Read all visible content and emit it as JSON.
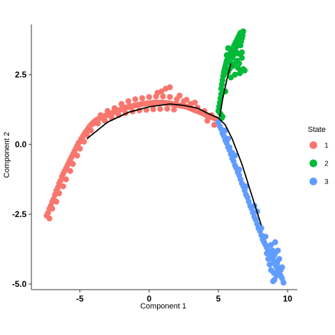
{
  "chart_data": {
    "type": "scatter",
    "title": "",
    "xlabel": "Component 1",
    "ylabel": "Component 2",
    "xlim": [
      -8.5,
      10.7
    ],
    "ylim": [
      -5.2,
      4.3
    ],
    "x_ticks": [
      -5,
      0,
      5,
      10
    ],
    "x_tick_labels": [
      "-5",
      "0",
      "5",
      "10"
    ],
    "y_ticks": [
      -5.0,
      -2.5,
      0.0,
      2.5
    ],
    "y_tick_labels": [
      "-5.0",
      "-2.5",
      "0.0",
      "2.5"
    ],
    "grid": false,
    "legend": {
      "title": "State",
      "position": "right",
      "entries": [
        {
          "label": "1",
          "color": "#F8766D"
        },
        {
          "label": "2",
          "color": "#00BA38"
        },
        {
          "label": "3",
          "color": "#619CFF"
        }
      ]
    },
    "trajectory": {
      "color": "#000000",
      "x": [
        -4.5,
        -3.0,
        -1.5,
        0.0,
        1.5,
        2.5,
        3.5,
        4.3,
        5.0,
        5.5,
        6.0,
        6.7,
        7.4,
        8.1
      ],
      "y": [
        0.2,
        0.8,
        1.15,
        1.35,
        1.45,
        1.4,
        1.3,
        1.1,
        0.95,
        0.7,
        0.2,
        -0.7,
        -1.8,
        -2.9
      ]
    },
    "branch": {
      "color": "#000000",
      "x": [
        5.1,
        5.3,
        5.6,
        5.9
      ],
      "y": [
        1.0,
        1.6,
        2.3,
        2.9
      ]
    },
    "series": [
      {
        "name": "1",
        "color": "#F8766D",
        "x": [
          -7.4,
          -7.3,
          -7.2,
          -7.1,
          -7.0,
          -6.9,
          -6.8,
          -6.7,
          -6.6,
          -6.5,
          -6.4,
          -6.3,
          -6.2,
          -6.1,
          -6.0,
          -5.9,
          -5.8,
          -5.7,
          -5.6,
          -5.5,
          -5.4,
          -5.3,
          -5.2,
          -5.1,
          -5.0,
          -4.9,
          -4.8,
          -4.7,
          -4.6,
          -4.5,
          -4.4,
          -4.3,
          -4.2,
          -4.1,
          -4.0,
          -3.9,
          -3.8,
          -3.7,
          -3.6,
          -3.5,
          -3.4,
          -3.3,
          -3.2,
          -3.1,
          -3.0,
          -2.9,
          -2.8,
          -2.7,
          -2.6,
          -2.5,
          -2.4,
          -2.3,
          -2.2,
          -2.1,
          -2.0,
          -1.9,
          -1.8,
          -1.7,
          -1.6,
          -1.5,
          -1.4,
          -1.3,
          -1.2,
          -1.1,
          -1.0,
          -0.9,
          -0.8,
          -0.7,
          -0.6,
          -0.5,
          -0.4,
          -0.3,
          -0.2,
          -0.1,
          0.0,
          0.1,
          0.2,
          0.3,
          0.4,
          0.5,
          0.6,
          0.7,
          0.8,
          0.9,
          1.0,
          1.1,
          1.2,
          1.3,
          1.4,
          1.5,
          1.6,
          1.7,
          1.8,
          1.9,
          2.0,
          2.1,
          2.2,
          2.3,
          2.4,
          2.5,
          2.6,
          2.7,
          2.8,
          2.9,
          3.0,
          3.1,
          3.2,
          3.3,
          3.4,
          3.5,
          3.6,
          3.7,
          3.8,
          3.9,
          4.0,
          4.1,
          4.2,
          4.3,
          4.4,
          4.5,
          4.6,
          4.7,
          4.8,
          4.9,
          5.0,
          -7.0,
          -6.5,
          -6.0,
          -5.5,
          -5.0,
          -4.5,
          -4.0,
          -3.5,
          -3.0,
          -2.5,
          -2.0,
          -1.5,
          -1.0,
          -0.5,
          0.0,
          0.5,
          1.0,
          1.5,
          2.0,
          2.5,
          3.0,
          3.5,
          4.0,
          4.5,
          -7.2,
          -6.7,
          -6.2,
          -5.7,
          -5.2,
          -4.7,
          -4.2,
          -3.7,
          -3.2,
          -2.7,
          -2.2,
          -1.7,
          -1.2,
          -0.7,
          -0.2,
          0.3,
          0.8,
          1.3,
          1.8,
          1.2,
          1.5,
          0.6,
          0.9,
          2.2,
          2.7,
          3.3,
          4.7,
          4.2
        ],
        "y": [
          -2.55,
          -2.45,
          -2.3,
          -2.2,
          -2.05,
          -1.95,
          -1.8,
          -1.65,
          -1.55,
          -1.4,
          -1.3,
          -1.15,
          -1.05,
          -0.95,
          -0.85,
          -0.75,
          -0.65,
          -0.55,
          -0.45,
          -0.35,
          -0.25,
          -0.15,
          -0.05,
          0.05,
          0.1,
          0.2,
          0.28,
          0.36,
          0.44,
          0.5,
          0.58,
          0.64,
          0.7,
          0.75,
          0.8,
          0.84,
          0.88,
          0.9,
          0.93,
          0.95,
          0.98,
          1.0,
          1.02,
          1.04,
          1.06,
          1.08,
          1.1,
          1.12,
          1.14,
          1.16,
          1.18,
          1.2,
          1.22,
          1.24,
          1.26,
          1.28,
          1.3,
          1.32,
          1.33,
          1.34,
          1.36,
          1.37,
          1.38,
          1.39,
          1.4,
          1.41,
          1.42,
          1.43,
          1.44,
          1.45,
          1.46,
          1.46,
          1.47,
          1.47,
          1.48,
          1.48,
          1.49,
          1.49,
          1.5,
          1.5,
          1.5,
          1.5,
          1.5,
          1.5,
          1.5,
          1.49,
          1.49,
          1.48,
          1.48,
          1.47,
          1.46,
          1.45,
          1.44,
          1.43,
          1.42,
          1.41,
          1.4,
          1.39,
          1.38,
          1.37,
          1.36,
          1.35,
          1.33,
          1.31,
          1.29,
          1.27,
          1.25,
          1.23,
          1.21,
          1.19,
          1.17,
          1.15,
          1.13,
          1.11,
          1.09,
          1.06,
          1.04,
          1.02,
          1.0,
          0.98,
          0.96,
          0.94,
          0.92,
          0.9,
          0.88,
          -2.3,
          -1.75,
          -1.25,
          -0.7,
          -0.15,
          0.35,
          0.75,
          1.05,
          1.2,
          1.3,
          1.45,
          1.55,
          1.62,
          1.66,
          1.7,
          1.72,
          1.72,
          1.7,
          1.62,
          1.55,
          1.45,
          1.32,
          1.2,
          1.05,
          -2.65,
          -2.05,
          -1.5,
          -0.95,
          -0.4,
          0.1,
          0.5,
          0.75,
          0.85,
          0.95,
          1.05,
          1.12,
          1.18,
          1.22,
          1.24,
          1.26,
          1.27,
          1.28,
          1.25,
          2.0,
          2.05,
          1.85,
          1.9,
          1.75,
          1.6,
          1.5,
          0.7,
          0.85
        ]
      },
      {
        "name": "2",
        "color": "#00BA38",
        "x": [
          5.0,
          5.05,
          5.1,
          5.15,
          5.2,
          5.2,
          5.25,
          5.3,
          5.35,
          5.4,
          5.45,
          5.5,
          5.55,
          5.6,
          5.65,
          5.7,
          5.75,
          5.8,
          5.85,
          5.9,
          5.95,
          6.0,
          6.05,
          6.1,
          6.15,
          6.2,
          6.25,
          6.3,
          6.35,
          6.4,
          6.45,
          6.5,
          6.55,
          6.6,
          6.65,
          6.7,
          6.75,
          6.8,
          5.3,
          5.5,
          5.7,
          5.9,
          6.1,
          6.3,
          6.5,
          6.7,
          5.8,
          6.0,
          6.2,
          6.4,
          6.6,
          6.8,
          6.9,
          5.6,
          5.4,
          6.0,
          6.3,
          6.5,
          6.2,
          5.9,
          5.7,
          6.55,
          6.7,
          6.45,
          6.35,
          6.6,
          5.25,
          5.15
        ],
        "y": [
          1.2,
          1.35,
          1.5,
          1.65,
          1.8,
          2.0,
          2.15,
          2.3,
          2.45,
          2.6,
          2.7,
          2.8,
          2.9,
          3.0,
          3.05,
          3.1,
          3.15,
          3.2,
          3.25,
          3.3,
          3.35,
          3.4,
          3.45,
          3.5,
          3.55,
          3.6,
          3.65,
          3.7,
          3.75,
          3.8,
          3.85,
          3.9,
          3.95,
          4.0,
          3.7,
          3.8,
          3.9,
          4.05,
          1.0,
          1.9,
          2.6,
          2.9,
          3.2,
          3.5,
          3.6,
          3.3,
          2.7,
          2.8,
          2.9,
          2.75,
          2.6,
          2.7,
          2.65,
          3.2,
          2.5,
          3.1,
          3.3,
          2.9,
          2.5,
          2.4,
          3.45,
          2.55,
          3.1,
          3.25,
          3.0,
          3.55,
          0.95,
          1.1
        ]
      },
      {
        "name": "3",
        "color": "#619CFF",
        "x": [
          5.0,
          5.1,
          5.2,
          5.3,
          5.4,
          5.5,
          5.6,
          5.7,
          5.8,
          5.9,
          6.0,
          6.1,
          6.2,
          6.3,
          6.4,
          6.5,
          6.6,
          6.7,
          6.8,
          6.9,
          7.0,
          7.1,
          7.2,
          7.3,
          7.4,
          7.5,
          7.6,
          7.7,
          7.8,
          7.9,
          8.0,
          8.1,
          8.2,
          8.3,
          8.4,
          8.5,
          8.6,
          8.7,
          8.8,
          8.9,
          9.0,
          9.1,
          9.2,
          9.3,
          9.4,
          9.5,
          9.6,
          8.8,
          8.9,
          9.0,
          9.1,
          9.2,
          9.3,
          9.4,
          8.7,
          8.8,
          9.0,
          9.2,
          9.5,
          8.6,
          9.1,
          9.3,
          8.95,
          9.05,
          9.25,
          9.35,
          8.5,
          9.6,
          8.4,
          9.7,
          8.1,
          7.8,
          8.3,
          6.2,
          6.5,
          5.7,
          5.5,
          5.8,
          6.0,
          7.0,
          7.6
        ],
        "y": [
          0.8,
          0.65,
          0.55,
          0.4,
          0.3,
          0.15,
          0.05,
          -0.1,
          -0.2,
          -0.35,
          -0.5,
          -0.6,
          -0.75,
          -0.85,
          -1.0,
          -1.1,
          -1.25,
          -1.4,
          -1.5,
          -1.65,
          -1.8,
          -1.9,
          -2.05,
          -2.2,
          -2.3,
          -2.45,
          -2.6,
          -2.7,
          -2.85,
          -3.0,
          -3.1,
          -3.25,
          -3.4,
          -3.5,
          -3.6,
          -3.7,
          -3.8,
          -3.9,
          -4.0,
          -4.1,
          -4.2,
          -4.3,
          -4.4,
          -4.5,
          -4.6,
          -4.7,
          -4.8,
          -3.6,
          -3.8,
          -4.0,
          -3.9,
          -4.2,
          -4.4,
          -4.1,
          -4.3,
          -4.5,
          -4.6,
          -4.7,
          -4.5,
          -4.1,
          -3.5,
          -3.8,
          -4.9,
          -4.85,
          -4.25,
          -4.65,
          -3.9,
          -4.4,
          -3.3,
          -4.95,
          -3.0,
          -2.4,
          -3.5,
          -0.4,
          -0.9,
          0.2,
          0.5,
          -0.1,
          -0.3,
          -1.5,
          -2.2
        ]
      }
    ]
  }
}
